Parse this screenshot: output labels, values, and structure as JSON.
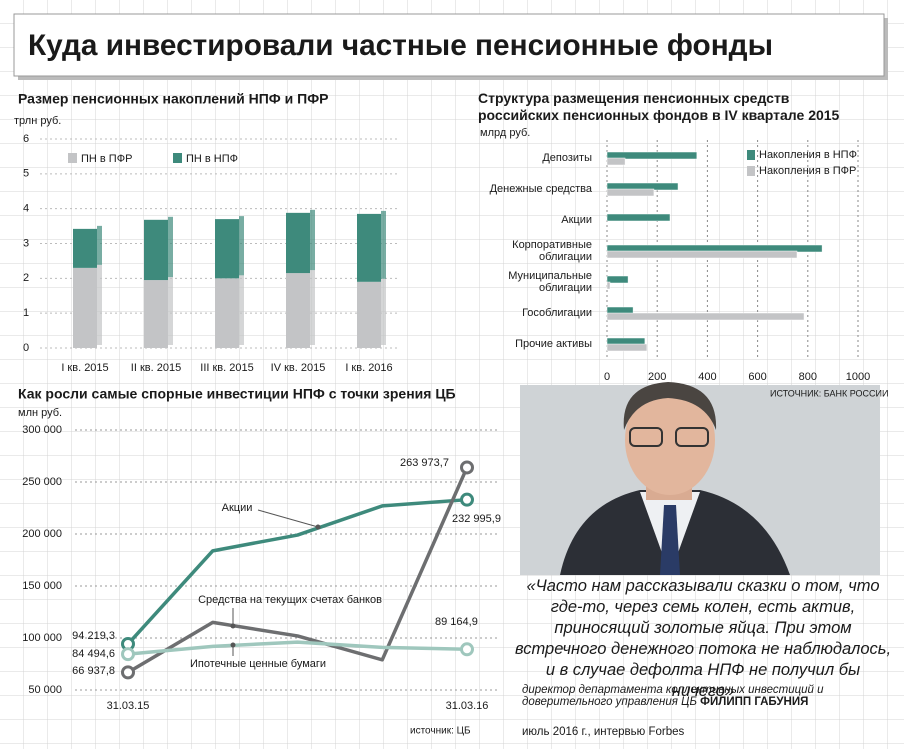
{
  "title": "Куда инвестировали частные пенсионные фонды",
  "chart_data": [
    {
      "type": "bar",
      "stacked": true,
      "title": "Размер пенсионных накоплений НПФ и ПФР",
      "y_label": "трлн руб.",
      "categories": [
        "I кв. 2015",
        "II кв. 2015",
        "III кв. 2015",
        "IV кв. 2015",
        "I кв. 2016"
      ],
      "series": [
        {
          "name": "ПН в ПФР",
          "color": "#c3c4c6",
          "values": [
            2.3,
            1.95,
            2.0,
            2.15,
            1.9
          ]
        },
        {
          "name": "ПН в НПФ",
          "color": "#3e8a7c",
          "values": [
            1.12,
            1.73,
            1.7,
            1.73,
            1.95
          ]
        }
      ],
      "ylim": [
        0,
        6
      ],
      "yticks": [
        0,
        1,
        2,
        3,
        4,
        5,
        6
      ],
      "grid": true
    },
    {
      "type": "hbar",
      "title": "Структура размещения пенсионных средств российских пенсионных фондов в IV квартале 2015",
      "x_label": "млрд руб.",
      "categories": [
        "Депозиты",
        "Денежные средства",
        "Акции",
        "Корпоративные\nоблигации",
        "Муниципальные\nоблигации",
        "Гособлигации",
        "Прочие активы"
      ],
      "series": [
        {
          "name": "Накопления в НПФ",
          "color": "#3e8a7c",
          "values": [
            358,
            283,
            251,
            857,
            84,
            104,
            151
          ]
        },
        {
          "name": "Накопления в ПФР",
          "color": "#c3c4c6",
          "values": [
            72,
            187,
            0,
            757,
            12,
            785,
            159
          ]
        }
      ],
      "xlim": [
        0,
        1000
      ],
      "xticks": [
        0,
        200,
        400,
        600,
        800,
        1000
      ],
      "grid": true,
      "source": "ИСТОЧНИК: БАНК РОССИИ"
    },
    {
      "type": "line",
      "title": "Как росли самые спорные инвестиции НПФ с точки зрения ЦБ",
      "y_label": "млн руб.",
      "categories": [
        "31.03.15",
        null,
        null,
        null,
        "31.03.16"
      ],
      "series": [
        {
          "name": "Акции",
          "color": "#3e8a7c",
          "values": [
            94219.3,
            183800,
            199000,
            227000,
            232995.9
          ],
          "value_labels": [
            "94 219,3",
            null,
            null,
            null,
            "232 995,9"
          ]
        },
        {
          "name": "Средства на текущих счетах банков",
          "color": "#6d6e70",
          "values": [
            66937.8,
            115000,
            102000,
            79000,
            263973.7
          ],
          "value_labels": [
            "66 937,8",
            null,
            null,
            null,
            "263 973,7"
          ]
        },
        {
          "name": "Ипотечные ценные бумаги",
          "color": "#9fc7bd",
          "values": [
            84494.6,
            92000,
            96000,
            91000,
            89164.9
          ],
          "value_labels": [
            "84 494,6",
            null,
            null,
            null,
            "89 164,9"
          ]
        }
      ],
      "ylim": [
        50000,
        300000
      ],
      "yticks": [
        {
          "value": 50000,
          "label": "50 000"
        },
        {
          "value": 100000,
          "label": "100 000"
        },
        {
          "value": 150000,
          "label": "150 000"
        },
        {
          "value": 200000,
          "label": "200 000"
        },
        {
          "value": 250000,
          "label": "250 000"
        },
        {
          "value": 300000,
          "label": "300 000"
        }
      ],
      "grid": true,
      "source": "источник: ЦБ"
    }
  ],
  "quote": {
    "text": "«Часто нам рассказывали сказки о том, что где-то, через семь колен, есть актив, приносящий золотые яйца. При этом встречного денежного потока не наблюдалось, и в случае дефолта НПФ не получил бы ничего»",
    "position": "директор департамента коллективных инвестиций и доверительного управления ЦБ",
    "name": "ФИЛИПП ГАБУНИЯ",
    "source": "июль 2016 г., интервью Forbes"
  }
}
